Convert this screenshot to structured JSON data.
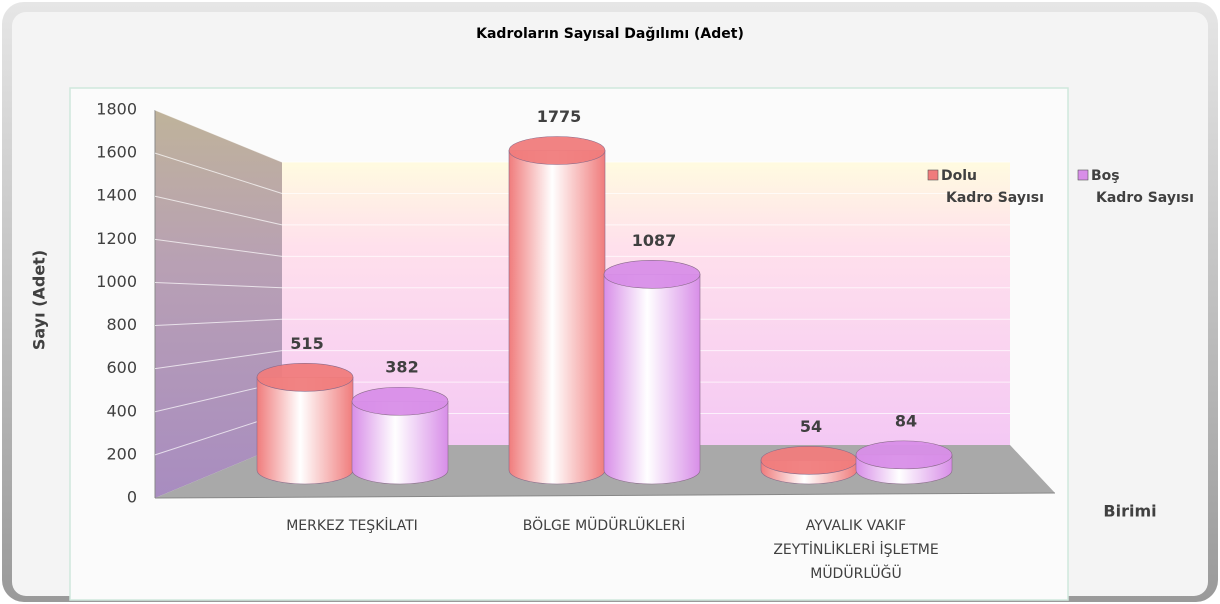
{
  "chart_data": {
    "type": "bar3d",
    "title": "Kadroların Sayısal Dağılımı (Adet)",
    "y_label": "Sayı (Adet)",
    "x_label": "Birimi",
    "categories": [
      "MERKEZ TEŞKİLATI",
      "BÖLGE MÜDÜRLÜKLERİ",
      "AYVALIK VAKIF ZEYTİNLİKLERİ İŞLETME MÜDÜRLÜĞÜ"
    ],
    "series": [
      {
        "name": "Dolu Kadro Sayısı",
        "color": "#f07c7c",
        "values": [
          515,
          1775,
          54
        ]
      },
      {
        "name": "Boş Kadro Sayısı",
        "color": "#d88ee8",
        "values": [
          382,
          1087,
          84
        ]
      }
    ],
    "ylim": [
      0,
      1800
    ],
    "yticks": [
      0,
      200,
      400,
      600,
      800,
      1000,
      1200,
      1400,
      1600,
      1800
    ],
    "grid": true
  }
}
